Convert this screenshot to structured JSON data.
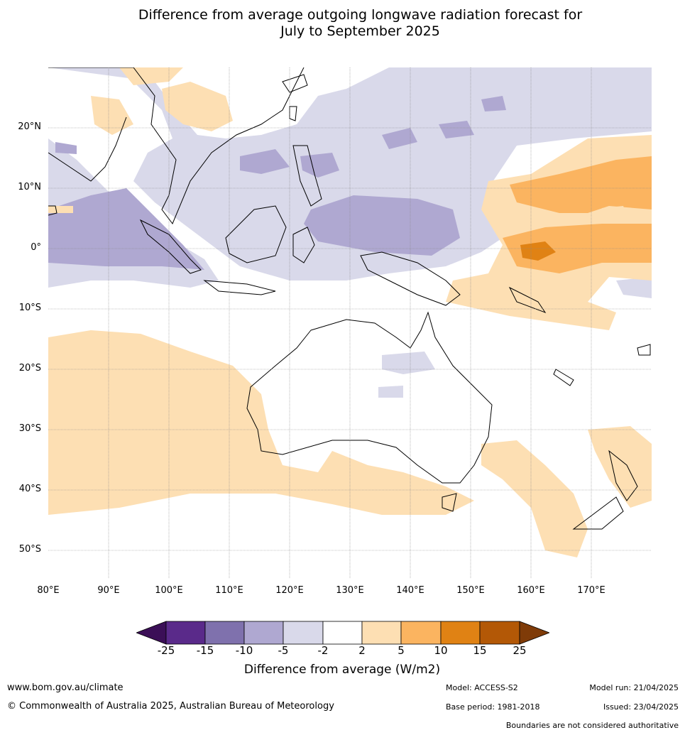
{
  "title_line1": "Difference from average outgoing longwave radiation forecast for",
  "title_line2": "July to September 2025",
  "map": {
    "lat_labels": [
      "20°N",
      "10°N",
      "0°",
      "10°S",
      "20°S",
      "30°S",
      "40°S",
      "50°S"
    ],
    "lon_labels": [
      "80°E",
      "90°E",
      "100°E",
      "110°E",
      "120°E",
      "130°E",
      "140°E",
      "150°E",
      "160°E",
      "170°E"
    ],
    "lat_range": [
      30,
      -55
    ],
    "lon_range": [
      80,
      180
    ]
  },
  "colorbar": {
    "labels": [
      "-25",
      "-15",
      "-10",
      "-5",
      "-2",
      "2",
      "5",
      "10",
      "15",
      "25"
    ],
    "colors": [
      "#3b0f57",
      "#5a2a8a",
      "#7f71ad",
      "#afa8d1",
      "#d9d9ea",
      "#ffffff",
      "#fddfb3",
      "#fbb460",
      "#e08214",
      "#b35806",
      "#7f3b08"
    ],
    "title": "Difference from average (W/m2)"
  },
  "footer": {
    "website": "www.bom.gov.au/climate",
    "copyright": "© Commonwealth of Australia 2025, Australian Bureau of Meteorology",
    "model": "Model: ACCESS-S2",
    "base_period": "Base period: 1981-2018",
    "model_run": "Model run: 21/04/2025",
    "issued": "Issued: 23/04/2025",
    "disclaimer": "Boundaries are not considered authoritative"
  }
}
